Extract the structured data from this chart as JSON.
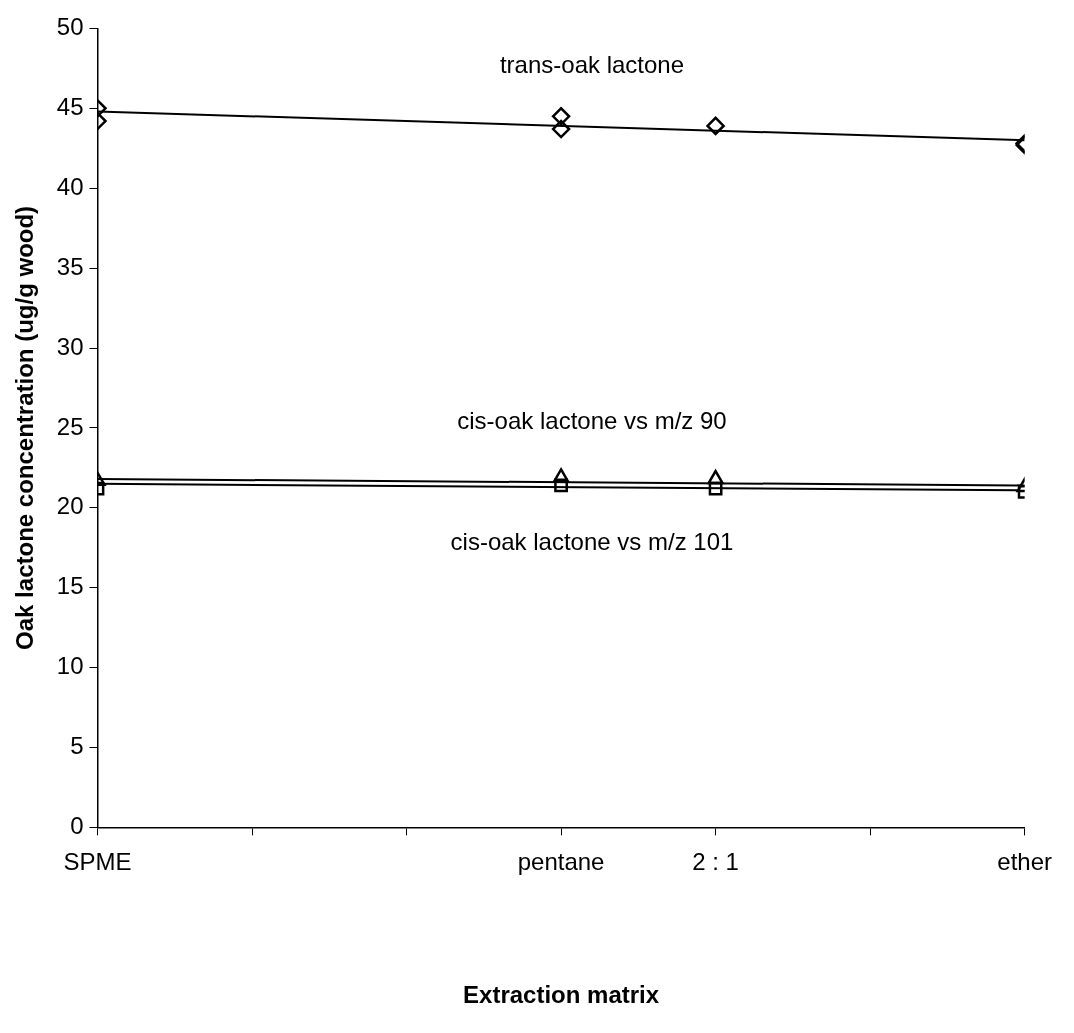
{
  "chart_data": {
    "type": "scatter",
    "xlabel": "Extraction matrix",
    "ylabel": "Oak lactone concentration (ug/g wood)",
    "categories": [
      "SPME",
      null,
      null,
      "pentane",
      "2 : 1",
      null,
      "ether"
    ],
    "ylim": [
      0,
      50
    ],
    "yticks": [
      0,
      5,
      10,
      15,
      20,
      25,
      30,
      35,
      40,
      45,
      50
    ],
    "grid": false,
    "legend": false,
    "series": [
      {
        "marker": "diamond",
        "color": "#000000",
        "x": [
          "SPME",
          "SPME",
          "pentane",
          "pentane",
          "2 : 1",
          "ether",
          "ether"
        ],
        "values": [
          45,
          44.2,
          44.5,
          43.7,
          43.9,
          42.8,
          42.7
        ]
      },
      {
        "marker": "triangle",
        "color": "#000000",
        "x": [
          "SPME",
          "pentane",
          "2 : 1",
          "ether"
        ],
        "values": [
          21.7,
          21.9,
          21.8,
          21.3
        ]
      },
      {
        "marker": "square",
        "color": "#000000",
        "x": [
          "SPME",
          "pentane",
          "2 : 1",
          "ether"
        ],
        "values": [
          21.2,
          21.4,
          21.2,
          21.0
        ]
      },
      {
        "type": "line",
        "name": "trans-oak lactone",
        "marker": "none",
        "color": "#000000",
        "x": [
          "SPME",
          "ether"
        ],
        "values": [
          44.8,
          43.0
        ]
      },
      {
        "type": "line",
        "name": "cis-oak lactone vs m/z 90",
        "marker": "none",
        "color": "#000000",
        "x": [
          "SPME",
          "ether"
        ],
        "values": [
          21.8,
          21.4
        ]
      },
      {
        "type": "line",
        "name": "cis-oak lactone vs m/z 101",
        "marker": "none",
        "color": "#000000",
        "x": [
          "SPME",
          "ether"
        ],
        "values": [
          21.5,
          21.1
        ]
      }
    ]
  }
}
